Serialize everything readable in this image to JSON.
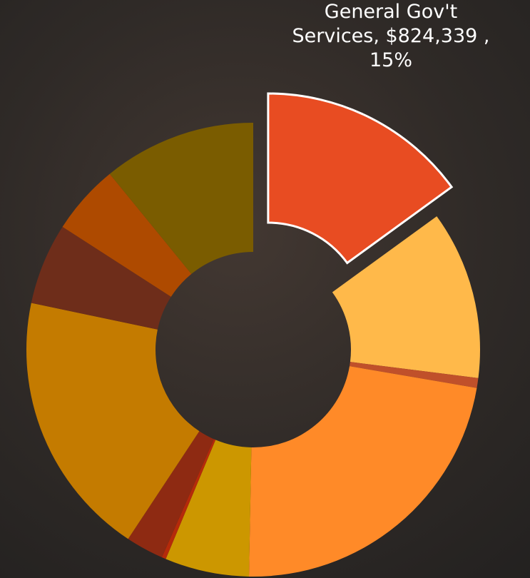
{
  "chart_data": {
    "type": "donut",
    "values": [
      15,
      12,
      0.7,
      22.6,
      6,
      0.3,
      2.7,
      19,
      5.8,
      5,
      10.9
    ],
    "colors": [
      "#E84C22",
      "#FFB94A",
      "#C0502A",
      "#FF8A28",
      "#CC9700",
      "#B52A0A",
      "#8E2A12",
      "#C47B00",
      "#6E2D1A",
      "#AE4A00",
      "#7A5C00"
    ],
    "value_labels": [
      "General Gov't Services,  $824,339 , 15%",
      null,
      null,
      null,
      null,
      null,
      null,
      null,
      null,
      null,
      null
    ],
    "exploded": [
      true,
      false,
      false,
      false,
      false,
      false,
      false,
      false,
      false,
      false,
      false
    ]
  }
}
